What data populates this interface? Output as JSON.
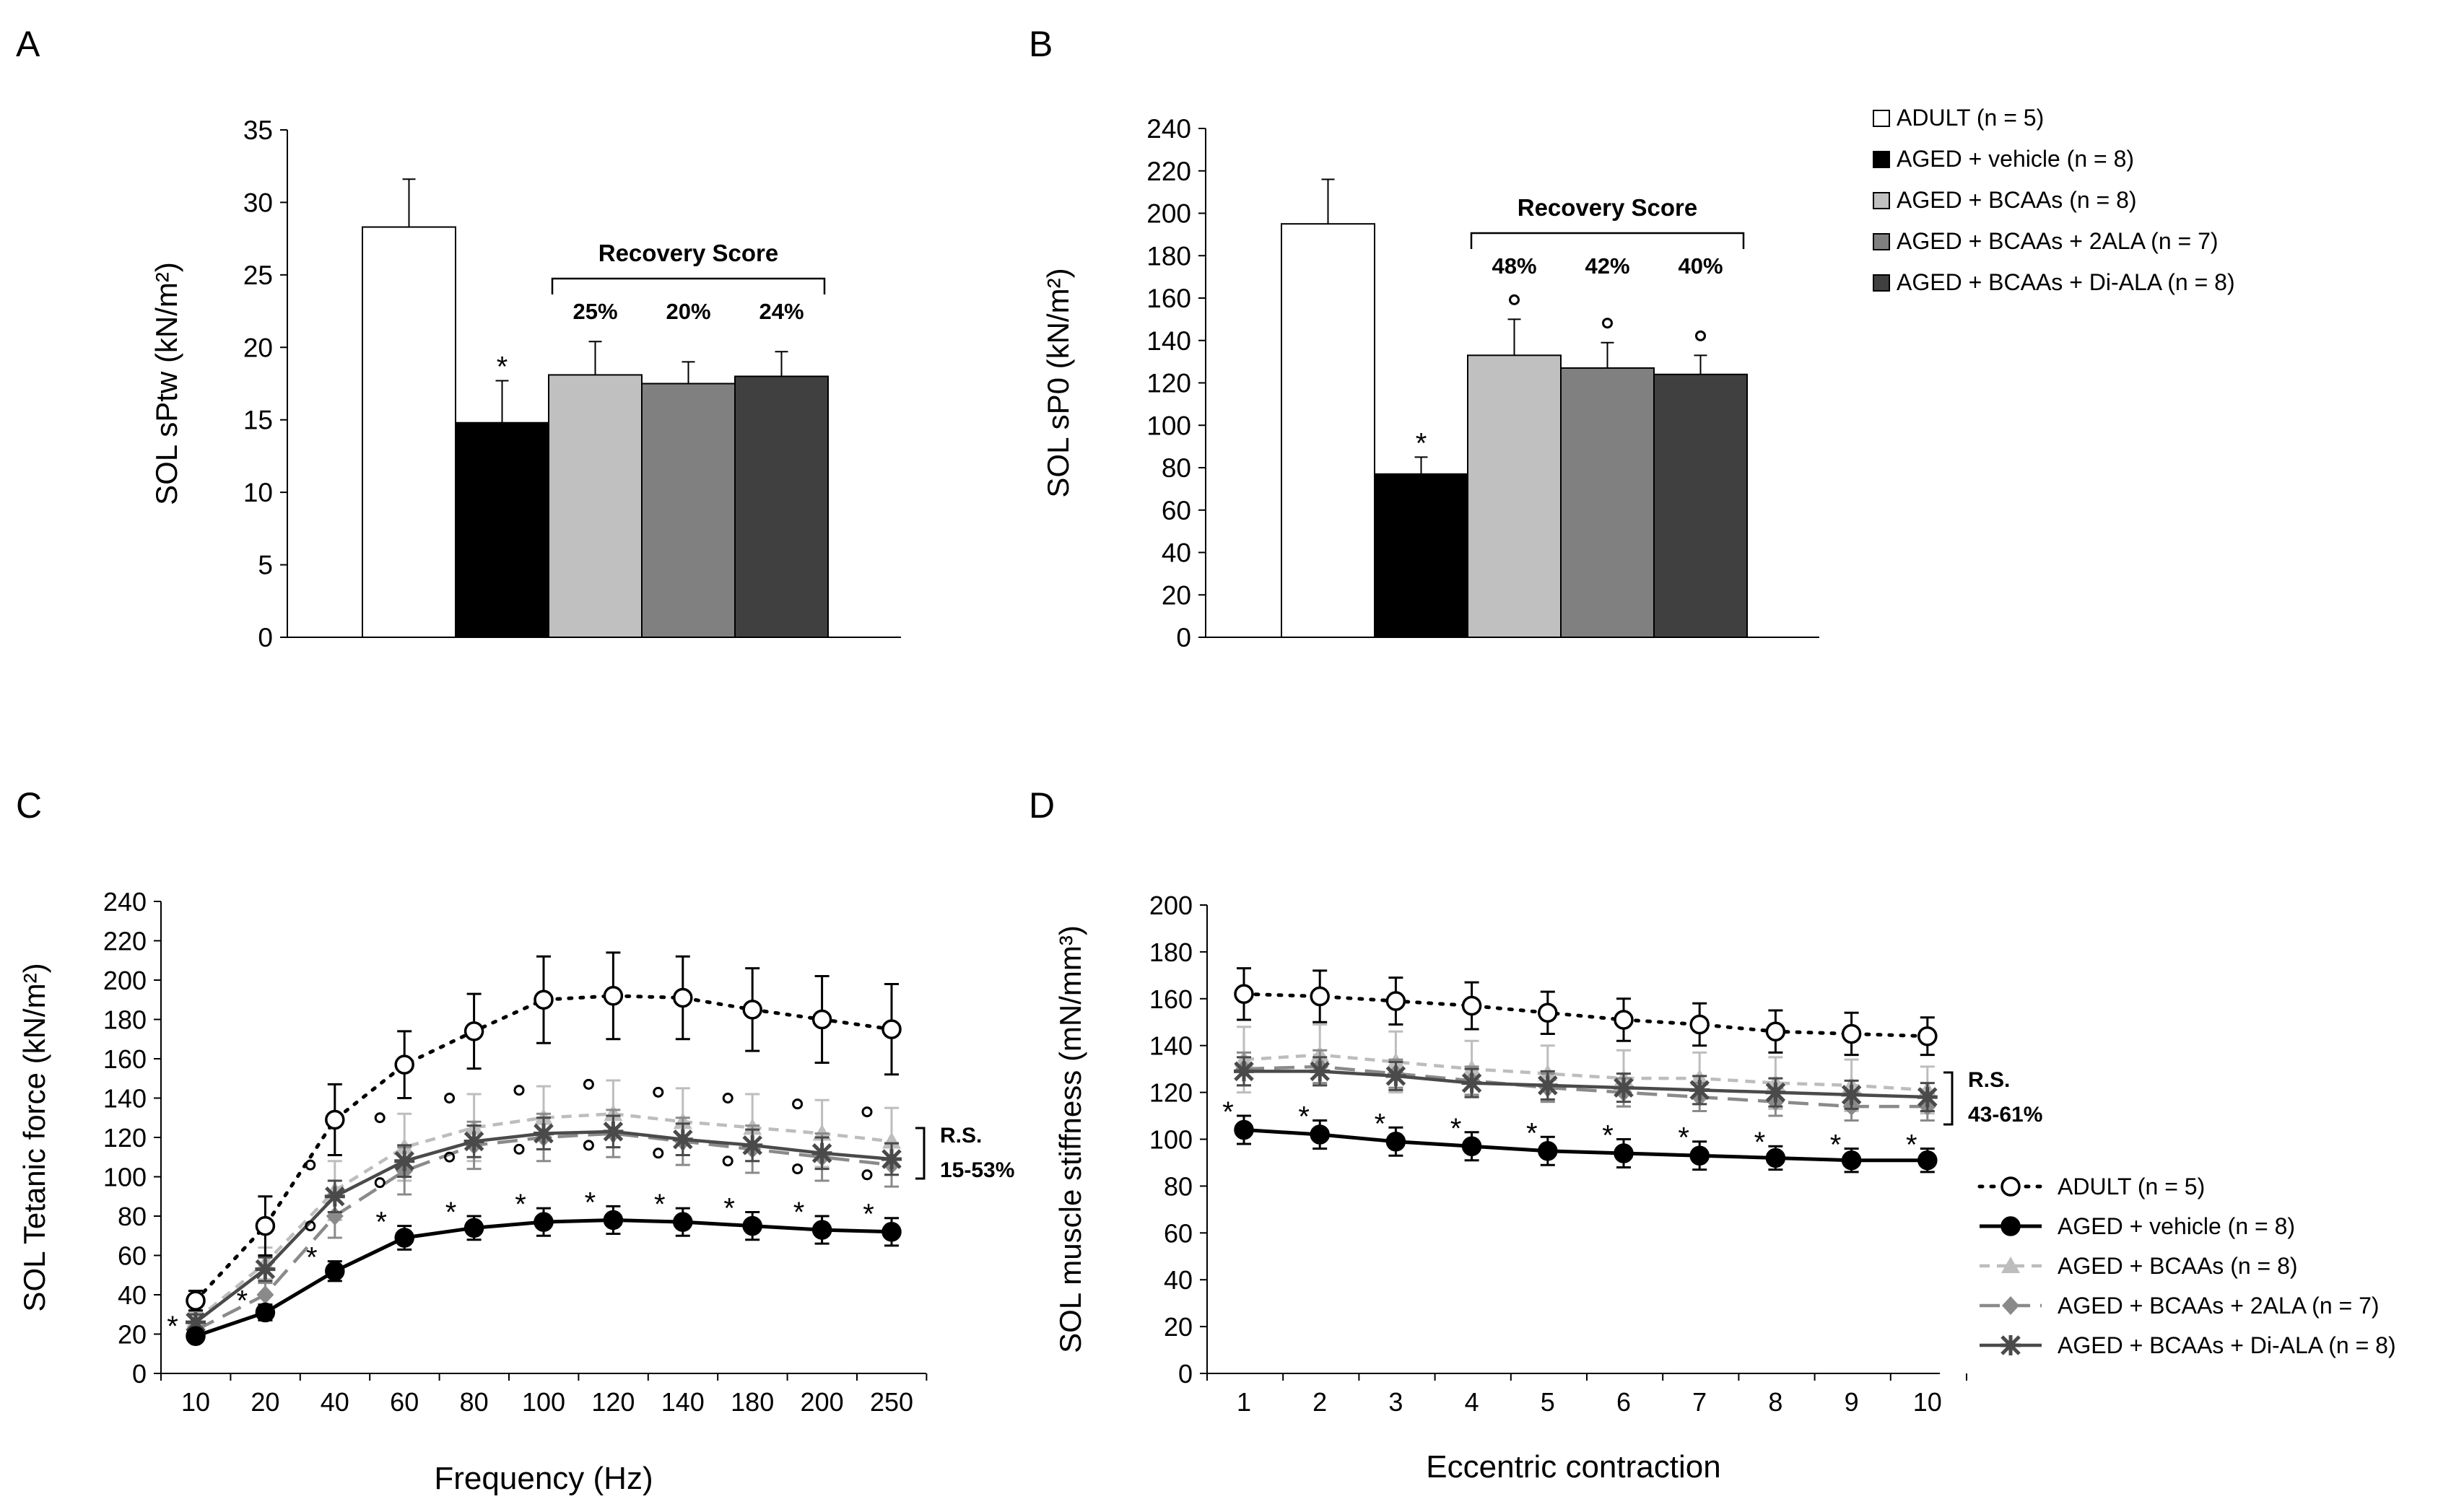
{
  "figure": {
    "panel_letters": [
      "A",
      "B",
      "C",
      "D"
    ],
    "colors": {
      "adult": "#ffffff",
      "vehicle": "#000000",
      "bcaas": "#c0c0c0",
      "bcaas_2ala": "#808080",
      "bcaas_diala": "#404040"
    }
  },
  "bar_legend": [
    "ADULT (n = 5)",
    "AGED + vehicle (n = 8)",
    "AGED + BCAAs (n = 8)",
    "AGED + BCAAs + 2ALA (n = 7)",
    "AGED + BCAAs + Di-ALA (n = 8)"
  ],
  "line_legend": [
    "ADULT (n = 5)",
    "AGED + vehicle (n = 8)",
    "AGED + BCAAs (n = 8)",
    "AGED + BCAAs + 2ALA (n = 7)",
    "AGED + BCAAs + Di-ALA (n = 8)"
  ],
  "chart_data": [
    {
      "panel": "A",
      "type": "bar",
      "ylabel": "SOL sPtw (kN/m²)",
      "ylim": [
        0,
        35
      ],
      "yticks": [
        0,
        5,
        10,
        15,
        20,
        25,
        30,
        35
      ],
      "groups": [
        "ADULT",
        "AGED + vehicle",
        "AGED + BCAAs",
        "AGED + BCAAs + 2ALA",
        "AGED + BCAAs + Di-ALA"
      ],
      "values": [
        28.3,
        14.8,
        18.1,
        17.5,
        18.0
      ],
      "errors": [
        3.3,
        2.9,
        2.3,
        1.5,
        1.7
      ],
      "marks": [
        "",
        "*",
        "",
        "",
        ""
      ],
      "recovery_score": {
        "label": "Recovery Score",
        "values": [
          "25%",
          "20%",
          "24%"
        ]
      }
    },
    {
      "panel": "B",
      "type": "bar",
      "ylabel": "SOL sP0 (kN/m²)",
      "ylim": [
        0,
        240
      ],
      "yticks": [
        0,
        20,
        40,
        60,
        80,
        100,
        120,
        140,
        160,
        180,
        200,
        220,
        240
      ],
      "groups": [
        "ADULT",
        "AGED + vehicle",
        "AGED + BCAAs",
        "AGED + BCAAs + 2ALA",
        "AGED + BCAAs + Di-ALA"
      ],
      "values": [
        195,
        77,
        133,
        127,
        124
      ],
      "errors": [
        21,
        8,
        17,
        12,
        9
      ],
      "marks": [
        "",
        "*",
        "°",
        "°",
        "°"
      ],
      "recovery_score": {
        "label": "Recovery Score",
        "values": [
          "48%",
          "42%",
          "40%"
        ]
      }
    },
    {
      "panel": "C",
      "type": "line",
      "xlabel": "Frequency (Hz)",
      "ylabel": "SOL Tetanic force (kN/m²)",
      "x": [
        "10",
        "20",
        "40",
        "60",
        "80",
        "100",
        "120",
        "140",
        "180",
        "200",
        "250"
      ],
      "ylim": [
        0,
        240
      ],
      "yticks": [
        0,
        20,
        40,
        60,
        80,
        100,
        120,
        140,
        160,
        180,
        200,
        220,
        240
      ],
      "series": [
        {
          "name": "ADULT (n = 5)",
          "values": [
            37,
            75,
            129,
            157,
            174,
            190,
            192,
            191,
            185,
            180,
            175
          ],
          "errors": [
            5,
            15,
            18,
            17,
            19,
            22,
            22,
            21,
            21,
            22,
            23
          ]
        },
        {
          "name": "AGED + vehicle (n = 8)",
          "values": [
            19,
            31,
            52,
            69,
            74,
            77,
            78,
            77,
            75,
            73,
            72
          ],
          "errors": [
            3,
            4,
            5,
            6,
            6,
            7,
            7,
            7,
            7,
            7,
            7
          ]
        },
        {
          "name": "AGED + BCAAs (n = 8)",
          "values": [
            27,
            56,
            93,
            115,
            125,
            130,
            132,
            128,
            125,
            122,
            118
          ],
          "errors": [
            4,
            8,
            15,
            17,
            17,
            16,
            17,
            17,
            17,
            17,
            17
          ]
        },
        {
          "name": "AGED + BCAAs + 2ALA (n = 7)",
          "values": [
            22,
            40,
            80,
            103,
            116,
            120,
            122,
            118,
            114,
            110,
            106
          ],
          "errors": [
            4,
            6,
            11,
            12,
            12,
            12,
            12,
            12,
            12,
            12,
            11
          ]
        },
        {
          "name": "AGED + BCAAs + Di-ALA (n = 8)",
          "values": [
            26,
            53,
            90,
            108,
            118,
            122,
            123,
            119,
            116,
            112,
            109
          ],
          "errors": [
            4,
            6,
            8,
            8,
            8,
            8,
            8,
            8,
            8,
            8,
            8
          ]
        }
      ],
      "annotation": {
        "line1": "R.S.",
        "line2": "15-53%"
      }
    },
    {
      "panel": "D",
      "type": "line",
      "xlabel": "Eccentric contraction",
      "ylabel": "SOL muscle stiffness (mN/mm³)",
      "x": [
        "1",
        "2",
        "3",
        "4",
        "5",
        "6",
        "7",
        "8",
        "9",
        "10"
      ],
      "ylim": [
        0,
        200
      ],
      "yticks": [
        0,
        20,
        40,
        60,
        80,
        100,
        120,
        140,
        160,
        180,
        200
      ],
      "series": [
        {
          "name": "ADULT (n = 5)",
          "values": [
            162,
            161,
            159,
            157,
            154,
            151,
            149,
            146,
            145,
            144
          ],
          "errors": [
            11,
            11,
            10,
            10,
            9,
            9,
            9,
            9,
            9,
            8
          ]
        },
        {
          "name": "AGED + vehicle (n = 8)",
          "values": [
            104,
            102,
            99,
            97,
            95,
            94,
            93,
            92,
            91,
            91
          ],
          "errors": [
            6,
            6,
            6,
            6,
            6,
            6,
            6,
            5,
            5,
            5
          ]
        },
        {
          "name": "AGED + BCAAs (n = 8)",
          "values": [
            134,
            136,
            133,
            130,
            128,
            126,
            126,
            124,
            123,
            121
          ],
          "errors": [
            14,
            13,
            13,
            12,
            12,
            12,
            11,
            11,
            11,
            10
          ]
        },
        {
          "name": "AGED + BCAAs + 2ALA (n = 7)",
          "values": [
            130,
            131,
            128,
            125,
            122,
            120,
            118,
            116,
            114,
            114
          ],
          "errors": [
            7,
            7,
            6,
            6,
            6,
            6,
            6,
            6,
            6,
            6
          ]
        },
        {
          "name": "AGED + BCAAs + Di-ALA (n = 8)",
          "values": [
            129,
            129,
            127,
            124,
            123,
            122,
            121,
            120,
            119,
            118
          ],
          "errors": [
            6,
            6,
            6,
            6,
            6,
            6,
            6,
            6,
            6,
            6
          ]
        }
      ],
      "annotation": {
        "line1": "R.S.",
        "line2": "43-61%"
      }
    }
  ]
}
